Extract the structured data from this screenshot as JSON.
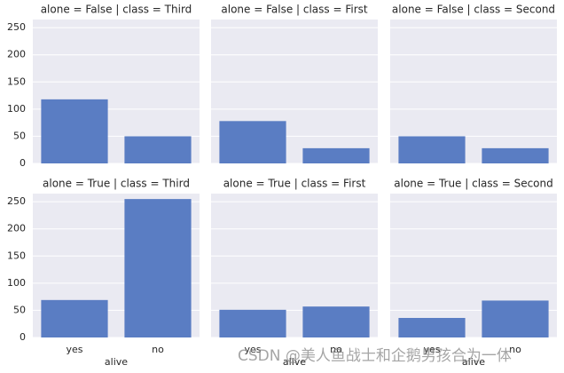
{
  "chart_data": [
    {
      "type": "bar",
      "title": "alone = False | class = Third",
      "categories": [
        null,
        null
      ],
      "values": [
        118,
        50
      ],
      "color": "#5a7dc3",
      "ylim": [
        0,
        265
      ],
      "yticks": [
        0,
        50,
        100,
        150,
        200,
        250
      ],
      "grid": true
    },
    {
      "type": "bar",
      "title": "alone = False | class = First",
      "categories": [
        null,
        null
      ],
      "values": [
        78,
        28
      ],
      "color": "#5a7dc3",
      "ylim": [
        0,
        265
      ],
      "yticks": [
        0,
        50,
        100,
        150,
        200,
        250
      ],
      "grid": true
    },
    {
      "type": "bar",
      "title": "alone = False | class = Second",
      "categories": [
        null,
        null
      ],
      "values": [
        50,
        28
      ],
      "color": "#5a7dc3",
      "ylim": [
        0,
        265
      ],
      "yticks": [
        0,
        50,
        100,
        150,
        200,
        250
      ],
      "grid": true
    },
    {
      "type": "bar",
      "title": "alone = True | class = Third",
      "xlabel": "alive",
      "categories": [
        "yes",
        "no"
      ],
      "values": [
        69,
        255
      ],
      "color": "#5a7dc3",
      "ylim": [
        0,
        265
      ],
      "yticks": [
        0,
        50,
        100,
        150,
        200,
        250
      ],
      "grid": true
    },
    {
      "type": "bar",
      "title": "alone = True | class = First",
      "xlabel": "alive",
      "categories": [
        "yes",
        "no"
      ],
      "values": [
        51,
        57
      ],
      "color": "#5a7dc3",
      "ylim": [
        0,
        265
      ],
      "yticks": [
        0,
        50,
        100,
        150,
        200,
        250
      ],
      "grid": true
    },
    {
      "type": "bar",
      "title": "alone = True | class = Second",
      "xlabel": "alive",
      "categories": [
        "yes",
        "no"
      ],
      "values": [
        36,
        68
      ],
      "color": "#5a7dc3",
      "ylim": [
        0,
        265
      ],
      "yticks": [
        0,
        50,
        100,
        150,
        200,
        250
      ],
      "grid": true
    }
  ],
  "watermark": "CSDN @美人鱼战士和企鹅男孩合为一体"
}
